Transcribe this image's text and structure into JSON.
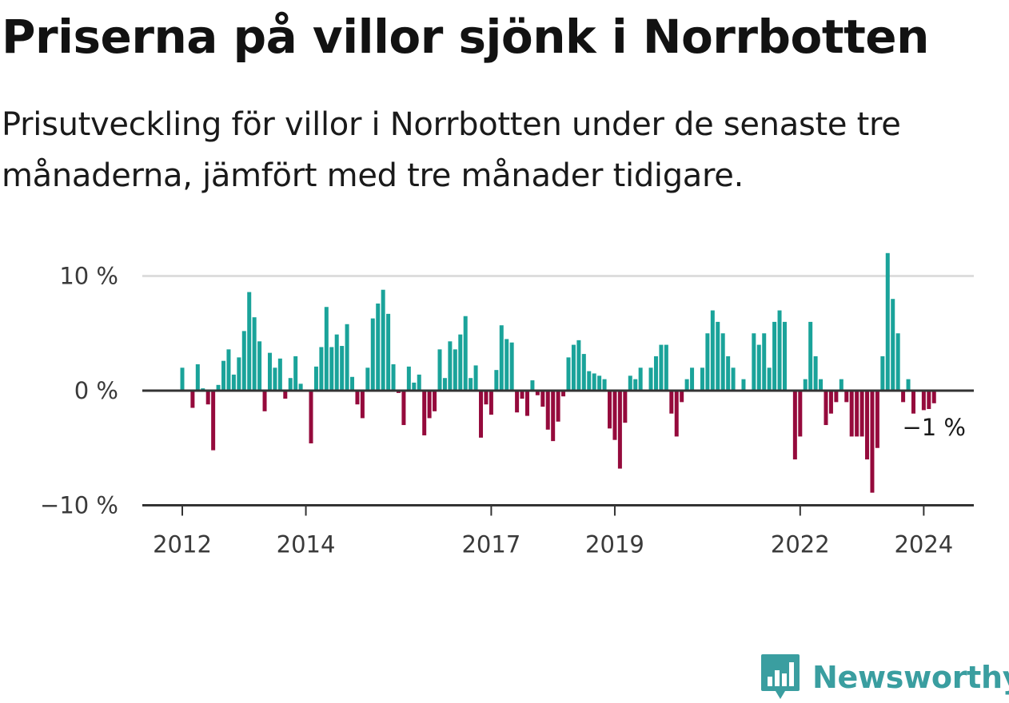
{
  "title": "Priserna på villor sjönk i Norrbotten",
  "subtitle": "Prisutveckling för villor i Norrbotten under de senaste tre månaderna, jämfört med tre månader tidigare.",
  "colors": {
    "positive": "#1aa39a",
    "negative": "#950a3c",
    "grid": "#dddddd",
    "axis": "#333333",
    "brand": "#3a9ea0"
  },
  "brand": {
    "name": "Newsworthy",
    "icon": "newsworthy-logo-icon"
  },
  "chart_data": {
    "type": "bar",
    "title": "Priserna på villor sjönk i Norrbotten",
    "xlabel": "",
    "ylabel": "",
    "x_start": "2012-01",
    "ylim": [
      -10,
      12
    ],
    "y_ticks": [
      {
        "value": 10,
        "label": "10 %"
      },
      {
        "value": 0,
        "label": "0 %"
      },
      {
        "value": -10,
        "label": "−10 %"
      }
    ],
    "x_ticks": [
      {
        "index": 0,
        "label": "2012"
      },
      {
        "index": 24,
        "label": "2014"
      },
      {
        "index": 60,
        "label": "2017"
      },
      {
        "index": 84,
        "label": "2019"
      },
      {
        "index": 120,
        "label": "2022"
      },
      {
        "index": 144,
        "label": "2024"
      }
    ],
    "annotation": {
      "index": 146,
      "value": -1.1,
      "label": "−1 %"
    },
    "values": [
      2.0,
      null,
      -1.5,
      2.3,
      0.2,
      -1.2,
      -5.2,
      0.5,
      2.6,
      3.6,
      1.4,
      2.9,
      5.2,
      8.6,
      6.4,
      4.3,
      -1.8,
      3.3,
      2.0,
      2.8,
      -0.7,
      1.1,
      3.0,
      0.6,
      null,
      -4.6,
      2.1,
      3.8,
      7.3,
      3.8,
      4.9,
      3.9,
      5.8,
      1.2,
      -1.2,
      -2.4,
      2.0,
      6.3,
      7.6,
      8.8,
      6.7,
      2.3,
      -0.2,
      -3.0,
      2.1,
      0.7,
      1.4,
      -3.9,
      -2.4,
      -1.8,
      3.6,
      1.1,
      4.3,
      3.6,
      4.9,
      6.5,
      1.1,
      2.2,
      -4.1,
      -1.2,
      -2.1,
      1.8,
      5.7,
      4.5,
      4.2,
      -1.9,
      -0.7,
      -2.2,
      0.9,
      -0.4,
      -1.4,
      -3.4,
      -4.4,
      -2.7,
      -0.5,
      2.9,
      4.0,
      4.4,
      3.2,
      1.7,
      1.5,
      1.3,
      1.0,
      -3.3,
      -4.3,
      -6.8,
      -2.8,
      1.3,
      1.0,
      2.0,
      null,
      2.0,
      3.0,
      4.0,
      4.0,
      -2.0,
      -4.0,
      -1.0,
      1.0,
      2.0,
      null,
      2.0,
      5.0,
      7.0,
      6.0,
      5.0,
      3.0,
      2.0,
      null,
      1.0,
      null,
      5.0,
      4.0,
      5.0,
      2.0,
      6.0,
      7.0,
      6.0,
      null,
      -6.0,
      -4.0,
      1.0,
      6.0,
      3.0,
      1.0,
      -3.0,
      -2.0,
      -1.0,
      1.0,
      -1.0,
      -4.0,
      -4.0,
      -4.0,
      -6.0,
      -8.9,
      -5.0,
      3.0,
      12.0,
      8.0,
      5.0,
      -1.0,
      1.0,
      -2.0,
      null,
      -1.7,
      -1.6,
      -1.1
    ]
  }
}
